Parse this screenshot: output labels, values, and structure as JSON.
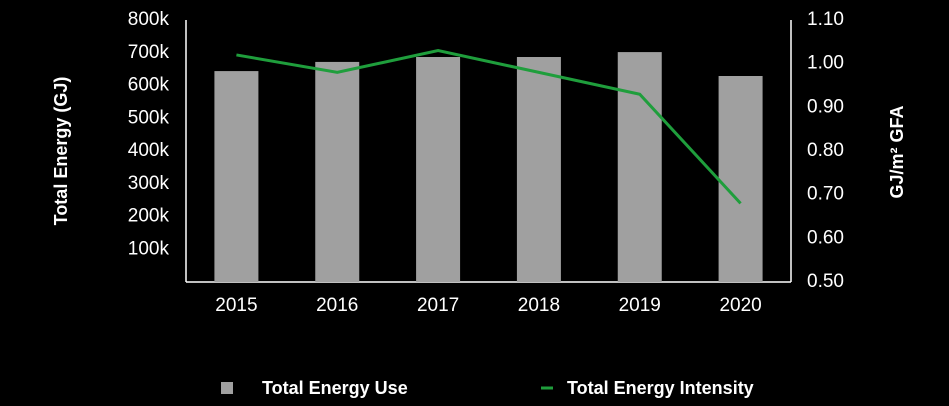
{
  "chart_data": {
    "type": "bar_line",
    "categories": [
      "2015",
      "2016",
      "2017",
      "2018",
      "2019",
      "2020"
    ],
    "series": [
      {
        "name": "Total Energy Use",
        "type": "bar",
        "color": "#a0a0a0",
        "values": [
          644000,
          672000,
          687000,
          687000,
          702000,
          629000
        ]
      },
      {
        "name": "Total Energy Intensity",
        "type": "line",
        "axis": "y2",
        "color": "#1f9e3c",
        "values": [
          1.02,
          0.98,
          1.03,
          0.98,
          0.93,
          0.68
        ]
      }
    ],
    "ylabel": "Total Energy (GJ)",
    "y2label": "GJ/m² GFA",
    "ylim": [
      0,
      800000
    ],
    "yticks": [
      {
        "value": 100000,
        "label": "100k"
      },
      {
        "value": 200000,
        "label": "200k"
      },
      {
        "value": 300000,
        "label": "300k"
      },
      {
        "value": 400000,
        "label": "400k"
      },
      {
        "value": 500000,
        "label": "500k"
      },
      {
        "value": 600000,
        "label": "600k"
      },
      {
        "value": 700000,
        "label": "700k"
      },
      {
        "value": 800000,
        "label": "800k"
      }
    ],
    "y2lim": [
      0.5,
      1.1
    ],
    "y2ticks": [
      {
        "value": 0.5,
        "label": "0.50"
      },
      {
        "value": 0.6,
        "label": "0.60"
      },
      {
        "value": 0.7,
        "label": "0.70"
      },
      {
        "value": 0.8,
        "label": "0.80"
      },
      {
        "value": 0.9,
        "label": "0.90"
      },
      {
        "value": 1.0,
        "label": "1.00"
      },
      {
        "value": 1.1,
        "label": "1.10"
      }
    ],
    "legend": "bottom",
    "grid": false
  }
}
